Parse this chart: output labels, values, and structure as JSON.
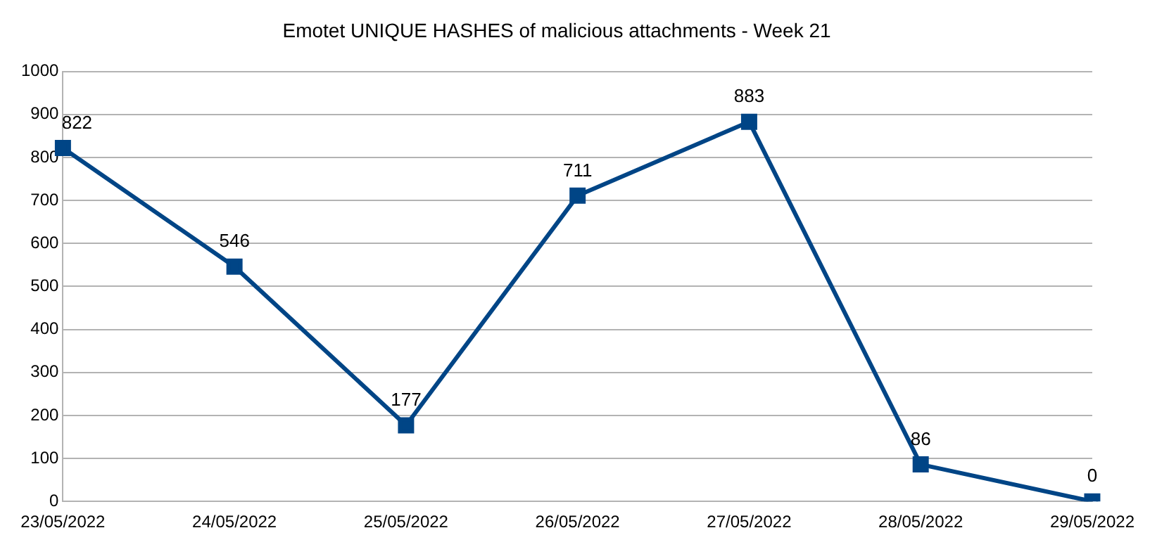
{
  "chart_data": {
    "type": "line",
    "title": "Emotet UNIQUE HASHES of malicious attachments - Week 21",
    "categories": [
      "23/05/2022",
      "24/05/2022",
      "25/05/2022",
      "26/05/2022",
      "27/05/2022",
      "28/05/2022",
      "29/05/2022"
    ],
    "series": [
      {
        "color": "#004586",
        "values": [
          822,
          546,
          177,
          711,
          883,
          86,
          0
        ]
      }
    ],
    "ylim": [
      0,
      1000
    ],
    "yticks": [
      0,
      100,
      200,
      300,
      400,
      500,
      600,
      700,
      800,
      900,
      1000
    ],
    "grid": "y",
    "marker": "square",
    "line_style": "solid",
    "data_labels": true,
    "legend": false
  }
}
